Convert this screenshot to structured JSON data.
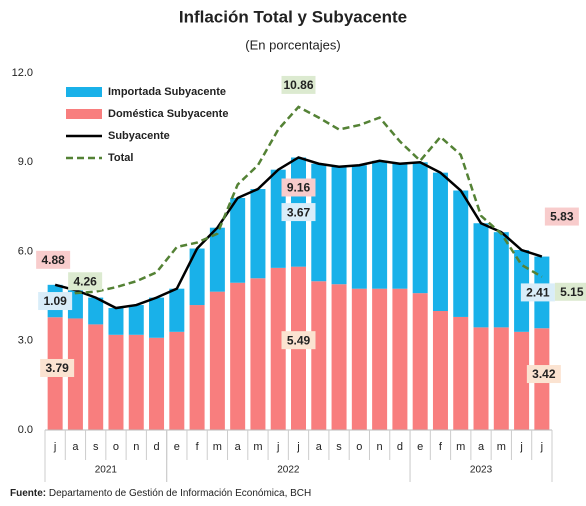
{
  "chart_data": {
    "type": "stacked_bar_line",
    "title": "Inflación Total y Subyacente",
    "subtitle": "(En porcentajes)",
    "categories": [
      "j",
      "a",
      "s",
      "o",
      "n",
      "d",
      "e",
      "f",
      "m",
      "a",
      "m",
      "j",
      "j",
      "a",
      "s",
      "o",
      "n",
      "d",
      "e",
      "f",
      "m",
      "a",
      "m",
      "j",
      "j"
    ],
    "year_groups": [
      {
        "label": "2021",
        "count": 6
      },
      {
        "label": "2022",
        "count": 12
      },
      {
        "label": "2023",
        "count": 7
      }
    ],
    "ylim": [
      0,
      12
    ],
    "yticks": [
      {
        "value": 0,
        "label": "0.0"
      },
      {
        "value": 3,
        "label": "3.0"
      },
      {
        "value": 6,
        "label": "6.0"
      },
      {
        "value": 9,
        "label": "9.0"
      },
      {
        "value": 12,
        "label": "12.0"
      }
    ],
    "bar_series": [
      {
        "name": "Importada Subyacente",
        "color": "#19b1e9",
        "label_color": "#1b8fd1",
        "label_bg": "#d9edf9",
        "values": [
          1.09,
          0.95,
          0.9,
          0.9,
          1.0,
          1.35,
          1.45,
          1.9,
          2.15,
          2.85,
          3.0,
          3.3,
          3.67,
          3.95,
          3.95,
          4.15,
          4.3,
          4.2,
          4.4,
          4.65,
          4.25,
          3.5,
          3.2,
          2.75,
          2.41
        ]
      },
      {
        "name": "Doméstica Subyacente",
        "color": "#f87e7e",
        "label_color": "#a4552a",
        "label_bg": "#fbe3d1",
        "values": [
          3.79,
          3.75,
          3.55,
          3.2,
          3.2,
          3.1,
          3.3,
          4.2,
          4.65,
          4.95,
          5.1,
          5.45,
          5.49,
          5.0,
          4.9,
          4.75,
          4.75,
          4.75,
          4.6,
          4.0,
          3.8,
          3.45,
          3.45,
          3.3,
          3.42
        ]
      }
    ],
    "line_series": [
      {
        "name": "Subyacente",
        "color": "#000000",
        "dashed": false,
        "label_color": "#e0161b",
        "label_bg": "#f8cccc",
        "values": [
          4.88,
          4.7,
          4.45,
          4.1,
          4.2,
          4.45,
          4.75,
          6.1,
          6.8,
          7.8,
          8.1,
          8.75,
          9.16,
          8.95,
          8.85,
          8.9,
          9.05,
          8.95,
          9.0,
          8.65,
          8.05,
          6.95,
          6.65,
          6.05,
          5.83
        ]
      },
      {
        "name": "Total",
        "color": "#548235",
        "dashed": true,
        "label_color": "#3f6b24",
        "label_bg": "#dcead0",
        "values": [
          4.26,
          4.6,
          4.65,
          4.8,
          5.0,
          5.3,
          6.15,
          6.3,
          6.6,
          8.25,
          8.9,
          10.1,
          10.86,
          10.5,
          10.1,
          10.25,
          10.5,
          9.7,
          9.05,
          9.85,
          9.25,
          7.2,
          6.6,
          5.55,
          5.15
        ]
      }
    ],
    "source_label": "Fuente:",
    "source": "Departamento de Gestión de Información Económica, BCH"
  }
}
